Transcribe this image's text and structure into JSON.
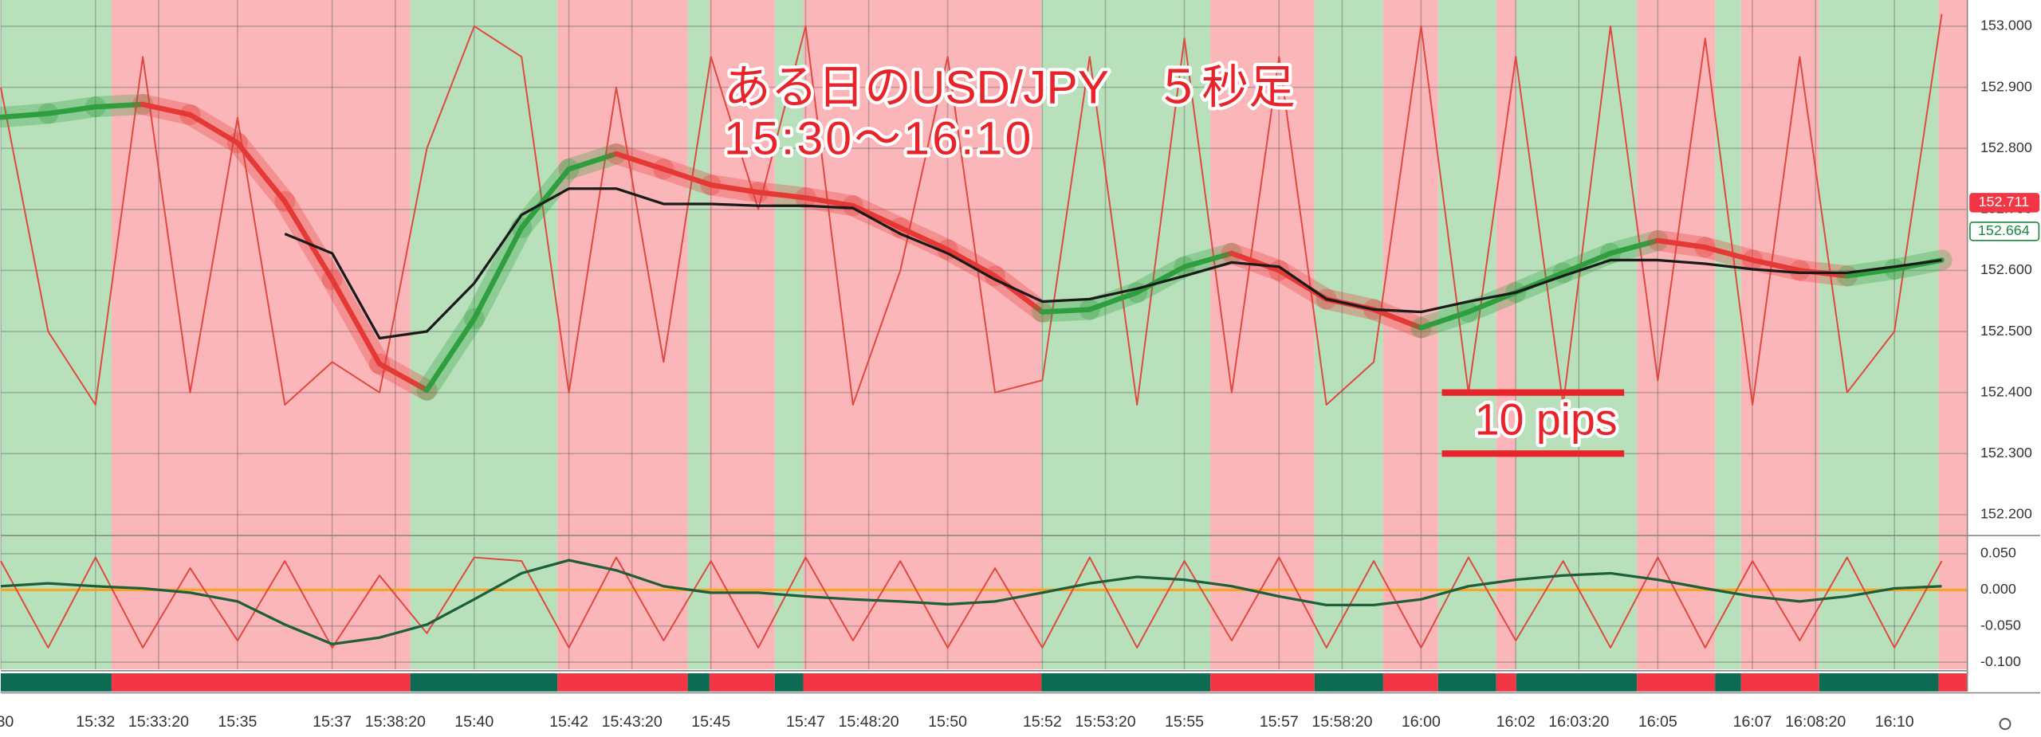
{
  "chart_data": {
    "type": "line",
    "title": "ある日のUSD/JPY　５秒足",
    "subtitle": "15:30〜16:10",
    "title_color": "#e8232a",
    "xlim": [
      930,
      971.54
    ],
    "ylim": [
      152.17,
      153.043
    ],
    "y2lim": [
      -0.11,
      0.068
    ],
    "xticks": [
      {
        "value": 930,
        "label": "30"
      },
      {
        "value": 932,
        "label": "15:32"
      },
      {
        "value": 933.333,
        "label": "15:33:20"
      },
      {
        "value": 935,
        "label": "15:35"
      },
      {
        "value": 937,
        "label": "15:37"
      },
      {
        "value": 938.333,
        "label": "15:38:20"
      },
      {
        "value": 940,
        "label": "15:40"
      },
      {
        "value": 942,
        "label": "15:42"
      },
      {
        "value": 943.333,
        "label": "15:43:20"
      },
      {
        "value": 945,
        "label": "15:45"
      },
      {
        "value": 947,
        "label": "15:47"
      },
      {
        "value": 948.333,
        "label": "15:48:20"
      },
      {
        "value": 950,
        "label": "15:50"
      },
      {
        "value": 952,
        "label": "15:52"
      },
      {
        "value": 953.333,
        "label": "15:53:20"
      },
      {
        "value": 955,
        "label": "15:55"
      },
      {
        "value": 957,
        "label": "15:57"
      },
      {
        "value": 958.333,
        "label": "15:58:20"
      },
      {
        "value": 960,
        "label": "16:00"
      },
      {
        "value": 962,
        "label": "16:02"
      },
      {
        "value": 963.333,
        "label": "16:03:20"
      },
      {
        "value": 965,
        "label": "16:05"
      },
      {
        "value": 967,
        "label": "16:07"
      },
      {
        "value": 968.333,
        "label": "16:08:20"
      },
      {
        "value": 970,
        "label": "16:10"
      }
    ],
    "yticks": [
      {
        "value": 153.0,
        "label": "153.000"
      },
      {
        "value": 152.9,
        "label": "152.900"
      },
      {
        "value": 152.8,
        "label": "152.800"
      },
      {
        "value": 152.7,
        "label": "152.700"
      },
      {
        "value": 152.6,
        "label": "152.600"
      },
      {
        "value": 152.5,
        "label": "152.500"
      },
      {
        "value": 152.4,
        "label": "152.400"
      },
      {
        "value": 152.3,
        "label": "152.300"
      },
      {
        "value": 152.2,
        "label": "152.200"
      }
    ],
    "y2ticks": [
      {
        "value": 0.05,
        "label": "0.050"
      },
      {
        "value": 0,
        "label": "0.000"
      },
      {
        "value": -0.05,
        "label": "-0.050"
      },
      {
        "value": -0.1,
        "label": "-0.100"
      }
    ],
    "grid": true,
    "zero_line_color": "#f5a623",
    "price_labels": [
      {
        "value": 152.711,
        "color": "#f23645",
        "filled": true
      },
      {
        "value": 152.664,
        "color": "#1b8a3c",
        "filled": false
      }
    ],
    "pips": {
      "label": "10 pips",
      "y": [
        152.4,
        152.3
      ],
      "x": [
        960.44,
        964.29
      ],
      "color": "#e8232a"
    },
    "bands": [
      {
        "start": 930,
        "end": 932.34,
        "color": "#b8e0bb",
        "strip_color": "#0c6b52"
      },
      {
        "start": 932.34,
        "end": 938.65,
        "color": "#fbb6b9",
        "strip_color": "#f23645"
      },
      {
        "start": 938.65,
        "end": 941.76,
        "color": "#b8e0bb",
        "strip_color": "#0c6b52"
      },
      {
        "start": 941.76,
        "end": 944.51,
        "color": "#fbb6b9",
        "strip_color": "#f23645"
      },
      {
        "start": 944.51,
        "end": 944.97,
        "color": "#b8e0bb",
        "strip_color": "#0c6b52"
      },
      {
        "start": 944.97,
        "end": 946.35,
        "color": "#fbb6b9",
        "strip_color": "#f23645"
      },
      {
        "start": 946.35,
        "end": 946.95,
        "color": "#b8e0bb",
        "strip_color": "#0c6b52"
      },
      {
        "start": 946.95,
        "end": 951.98,
        "color": "#fbb6b9",
        "strip_color": "#f23645"
      },
      {
        "start": 951.98,
        "end": 955.55,
        "color": "#b8e0bb",
        "strip_color": "#0c6b52"
      },
      {
        "start": 955.55,
        "end": 957.75,
        "color": "#fbb6b9",
        "strip_color": "#f23645"
      },
      {
        "start": 957.75,
        "end": 959.2,
        "color": "#b8e0bb",
        "strip_color": "#0c6b52"
      },
      {
        "start": 959.2,
        "end": 960.36,
        "color": "#fbb6b9",
        "strip_color": "#f23645"
      },
      {
        "start": 960.36,
        "end": 961.59,
        "color": "#b8e0bb",
        "strip_color": "#0c6b52"
      },
      {
        "start": 961.59,
        "end": 962.01,
        "color": "#fbb6b9",
        "strip_color": "#f23645"
      },
      {
        "start": 962.01,
        "end": 964.56,
        "color": "#b8e0bb",
        "strip_color": "#0c6b52"
      },
      {
        "start": 964.56,
        "end": 966.21,
        "color": "#fbb6b9",
        "strip_color": "#f23645"
      },
      {
        "start": 966.21,
        "end": 966.76,
        "color": "#b8e0bb",
        "strip_color": "#0c6b52"
      },
      {
        "start": 966.76,
        "end": 968.41,
        "color": "#fbb6b9",
        "strip_color": "#f23645"
      },
      {
        "start": 968.41,
        "end": 970.93,
        "color": "#b8e0bb",
        "strip_color": "#0c6b52"
      },
      {
        "start": 970.93,
        "end": 971.54,
        "color": "#fbb6b9",
        "strip_color": "#f23645"
      }
    ],
    "x": [
      930,
      931,
      932,
      933,
      934,
      935,
      936,
      937,
      938,
      939,
      940,
      941,
      942,
      943,
      944,
      945,
      946,
      947,
      948,
      949,
      950,
      951,
      952,
      953,
      954,
      955,
      956,
      957,
      958,
      959,
      960,
      961,
      962,
      963,
      964,
      965,
      966,
      967,
      968,
      969,
      970,
      971
    ],
    "series": [
      {
        "color": "#e0473e",
        "width": 1.2,
        "values": [
          152.9,
          152.5,
          152.38,
          152.95,
          152.4,
          152.85,
          152.38,
          152.45,
          152.4,
          152.8,
          153.0,
          152.95,
          152.4,
          152.9,
          152.45,
          152.95,
          152.7,
          153.0,
          152.38,
          152.6,
          152.95,
          152.4,
          152.42,
          152.95,
          152.38,
          152.98,
          152.4,
          152.95,
          152.38,
          152.45,
          153.0,
          152.4,
          152.95,
          152.38,
          153.0,
          152.42,
          152.98,
          152.38,
          152.95,
          152.4,
          152.5,
          153.02
        ]
      },
      {
        "color": "#2e9e3e",
        "down_color": "#e53935",
        "width": 4,
        "values": [
          152.851,
          152.857,
          152.868,
          152.872,
          152.855,
          152.809,
          152.713,
          152.585,
          152.447,
          152.404,
          152.521,
          152.67,
          152.766,
          152.791,
          152.766,
          152.74,
          152.728,
          152.719,
          152.706,
          152.67,
          152.634,
          152.591,
          152.532,
          152.536,
          152.564,
          152.606,
          152.628,
          152.6,
          152.553,
          152.536,
          152.506,
          152.532,
          152.564,
          152.596,
          152.628,
          152.649,
          152.638,
          152.617,
          152.6,
          152.591,
          152.602,
          152.617
        ]
      },
      {
        "color": "#1a1a1a",
        "width": 2,
        "values": [
          null,
          null,
          null,
          null,
          null,
          null,
          152.66,
          152.628,
          152.489,
          152.5,
          152.579,
          152.691,
          152.734,
          152.734,
          152.709,
          152.709,
          152.706,
          152.706,
          152.702,
          152.66,
          152.628,
          152.585,
          152.549,
          152.553,
          152.57,
          152.591,
          152.613,
          152.606,
          152.553,
          152.536,
          152.532,
          152.549,
          152.564,
          152.591,
          152.617,
          152.617,
          152.611,
          152.602,
          152.596,
          152.596,
          152.606,
          152.617
        ]
      },
      {
        "color": "#e0473e",
        "width": 1.2,
        "axis": "y2",
        "values": [
          0.04,
          -0.08,
          0.045,
          -0.08,
          0.03,
          -0.07,
          0.04,
          -0.08,
          0.02,
          -0.06,
          0.045,
          0.04,
          -0.08,
          0.045,
          -0.07,
          0.04,
          -0.08,
          0.045,
          -0.07,
          0.04,
          -0.08,
          0.03,
          -0.08,
          0.045,
          -0.08,
          0.04,
          -0.07,
          0.045,
          -0.08,
          0.04,
          -0.08,
          0.045,
          -0.07,
          0.04,
          -0.08,
          0.045,
          -0.08,
          0.04,
          -0.07,
          0.045,
          -0.08,
          0.04
        ]
      },
      {
        "color": "#1f5e3a",
        "width": 2,
        "axis": "y2",
        "values": [
          0.005,
          0.009,
          0.005,
          0.002,
          -0.004,
          -0.016,
          -0.048,
          -0.075,
          -0.066,
          -0.048,
          -0.013,
          0.023,
          0.041,
          0.027,
          0.005,
          -0.004,
          -0.004,
          -0.009,
          -0.013,
          -0.016,
          -0.02,
          -0.016,
          -0.004,
          0.009,
          0.018,
          0.014,
          0.005,
          -0.009,
          -0.021,
          -0.021,
          -0.013,
          0.005,
          0.014,
          0.02,
          0.023,
          0.014,
          0.002,
          -0.009,
          -0.016,
          -0.009,
          0.002,
          0.005
        ]
      }
    ]
  }
}
